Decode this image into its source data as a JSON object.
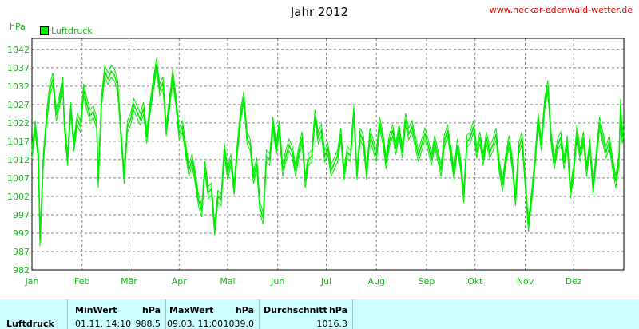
{
  "header": {
    "title": "Jahr 2012",
    "site_url": "www.neckar-odenwald-wetter.de",
    "unit": "hPa",
    "legend_label": "Luftdruck"
  },
  "chart_data": {
    "type": "line",
    "title": "Jahr 2012",
    "ylabel": "hPa",
    "ylim": [
      982,
      1045
    ],
    "yticks": [
      982,
      987,
      992,
      997,
      1002,
      1007,
      1012,
      1017,
      1022,
      1027,
      1032,
      1037,
      1042
    ],
    "x_ticklabels": [
      "Jan",
      "Feb",
      "Mär",
      "Apr",
      "Mai",
      "Jun",
      "Jul",
      "Aug",
      "Sep",
      "Okt",
      "Nov",
      "Dez"
    ],
    "xlim_days": [
      0,
      366
    ],
    "grid": true,
    "series": [
      {
        "name": "Luftdruck",
        "color": "#00ee00",
        "points": [
          [
            0,
            1014
          ],
          [
            2,
            1021
          ],
          [
            4,
            1013
          ],
          [
            5,
            990
          ],
          [
            7,
            1012
          ],
          [
            9,
            1023
          ],
          [
            11,
            1031
          ],
          [
            13,
            1034
          ],
          [
            15,
            1024
          ],
          [
            17,
            1028
          ],
          [
            19,
            1033
          ],
          [
            20,
            1022
          ],
          [
            22,
            1012
          ],
          [
            24,
            1026
          ],
          [
            26,
            1016
          ],
          [
            28,
            1023
          ],
          [
            30,
            1021
          ],
          [
            32,
            1031
          ],
          [
            34,
            1027
          ],
          [
            36,
            1024
          ],
          [
            38,
            1025
          ],
          [
            40,
            1022
          ],
          [
            41,
            1006
          ],
          [
            43,
            1028
          ],
          [
            45,
            1036
          ],
          [
            47,
            1034
          ],
          [
            49,
            1036
          ],
          [
            51,
            1035
          ],
          [
            53,
            1032
          ],
          [
            55,
            1019
          ],
          [
            57,
            1007
          ],
          [
            59,
            1021
          ],
          [
            61,
            1023
          ],
          [
            63,
            1027
          ],
          [
            65,
            1025
          ],
          [
            67,
            1023
          ],
          [
            69,
            1026
          ],
          [
            71,
            1018
          ],
          [
            73,
            1026
          ],
          [
            75,
            1032
          ],
          [
            77,
            1038
          ],
          [
            79,
            1031
          ],
          [
            81,
            1033
          ],
          [
            83,
            1020
          ],
          [
            85,
            1027
          ],
          [
            87,
            1035
          ],
          [
            89,
            1028
          ],
          [
            91,
            1019
          ],
          [
            93,
            1021
          ],
          [
            95,
            1015
          ],
          [
            97,
            1009
          ],
          [
            99,
            1012
          ],
          [
            101,
            1007
          ],
          [
            103,
            1001
          ],
          [
            105,
            998
          ],
          [
            107,
            1010
          ],
          [
            109,
            1003
          ],
          [
            111,
            1004
          ],
          [
            113,
            993
          ],
          [
            115,
            1002
          ],
          [
            117,
            1001
          ],
          [
            119,
            1015
          ],
          [
            121,
            1008
          ],
          [
            123,
            1012
          ],
          [
            125,
            1004
          ],
          [
            127,
            1015
          ],
          [
            129,
            1024
          ],
          [
            131,
            1029
          ],
          [
            133,
            1018
          ],
          [
            135,
            1016
          ],
          [
            137,
            1007
          ],
          [
            139,
            1011
          ],
          [
            141,
            999
          ],
          [
            143,
            996
          ],
          [
            145,
            1013
          ],
          [
            147,
            1012
          ],
          [
            149,
            1022
          ],
          [
            151,
            1015
          ],
          [
            153,
            1021
          ],
          [
            155,
            1009
          ],
          [
            157,
            1013
          ],
          [
            159,
            1016
          ],
          [
            161,
            1014
          ],
          [
            163,
            1009
          ],
          [
            165,
            1014
          ],
          [
            167,
            1018
          ],
          [
            169,
            1006
          ],
          [
            171,
            1012
          ],
          [
            173,
            1013
          ],
          [
            175,
            1024
          ],
          [
            177,
            1018
          ],
          [
            179,
            1020
          ],
          [
            181,
            1013
          ],
          [
            183,
            1015
          ],
          [
            185,
            1009
          ],
          [
            187,
            1011
          ],
          [
            189,
            1013
          ],
          [
            191,
            1019
          ],
          [
            193,
            1008
          ],
          [
            195,
            1014
          ],
          [
            197,
            1013
          ],
          [
            199,
            1025
          ],
          [
            201,
            1008
          ],
          [
            203,
            1019
          ],
          [
            205,
            1017
          ],
          [
            207,
            1008
          ],
          [
            209,
            1019
          ],
          [
            211,
            1016
          ],
          [
            213,
            1013
          ],
          [
            215,
            1022
          ],
          [
            217,
            1018
          ],
          [
            219,
            1011
          ],
          [
            221,
            1017
          ],
          [
            223,
            1020
          ],
          [
            225,
            1015
          ],
          [
            227,
            1020
          ],
          [
            229,
            1014
          ],
          [
            231,
            1023
          ],
          [
            233,
            1019
          ],
          [
            235,
            1021
          ],
          [
            237,
            1017
          ],
          [
            239,
            1013
          ],
          [
            241,
            1016
          ],
          [
            243,
            1019
          ],
          [
            245,
            1016
          ],
          [
            247,
            1012
          ],
          [
            249,
            1017
          ],
          [
            251,
            1013
          ],
          [
            253,
            1009
          ],
          [
            255,
            1017
          ],
          [
            257,
            1020
          ],
          [
            259,
            1014
          ],
          [
            261,
            1008
          ],
          [
            263,
            1016
          ],
          [
            265,
            1011
          ],
          [
            267,
            1002
          ],
          [
            269,
            1017
          ],
          [
            271,
            1018
          ],
          [
            273,
            1021
          ],
          [
            275,
            1014
          ],
          [
            277,
            1018
          ],
          [
            279,
            1012
          ],
          [
            281,
            1018
          ],
          [
            283,
            1014
          ],
          [
            285,
            1016
          ],
          [
            287,
            1019
          ],
          [
            289,
            1010
          ],
          [
            291,
            1005
          ],
          [
            293,
            1012
          ],
          [
            295,
            1017
          ],
          [
            297,
            1011
          ],
          [
            299,
            1001
          ],
          [
            301,
            1015
          ],
          [
            303,
            1018
          ],
          [
            305,
            1006
          ],
          [
            307,
            994
          ],
          [
            309,
            1002
          ],
          [
            311,
            1011
          ],
          [
            313,
            1023
          ],
          [
            315,
            1016
          ],
          [
            317,
            1027
          ],
          [
            319,
            1032
          ],
          [
            321,
            1018
          ],
          [
            323,
            1011
          ],
          [
            325,
            1016
          ],
          [
            327,
            1018
          ],
          [
            329,
            1011
          ],
          [
            331,
            1017
          ],
          [
            333,
            1003
          ],
          [
            335,
            1009
          ],
          [
            337,
            1020
          ],
          [
            339,
            1013
          ],
          [
            341,
            1018
          ],
          [
            343,
            1009
          ],
          [
            345,
            1016
          ],
          [
            347,
            1004
          ],
          [
            349,
            1013
          ],
          [
            351,
            1022
          ],
          [
            353,
            1018
          ],
          [
            355,
            1014
          ],
          [
            357,
            1017
          ],
          [
            359,
            1011
          ],
          [
            361,
            1006
          ],
          [
            363,
            1012
          ],
          [
            364,
            1027
          ],
          [
            365,
            1018
          ],
          [
            366,
            1020
          ]
        ]
      }
    ]
  },
  "stats": {
    "row_label": "Luftdruck",
    "min": {
      "header": "MinWert",
      "unit": "hPa",
      "when": "01.11.  14:10",
      "value": "988.5"
    },
    "max": {
      "header": "MaxWert",
      "unit": "hPa",
      "when": "09.03.  11:00",
      "value": "1039.0"
    },
    "avg": {
      "header": "Durchschnitt",
      "unit": "hPa",
      "value": "1016.3"
    }
  }
}
